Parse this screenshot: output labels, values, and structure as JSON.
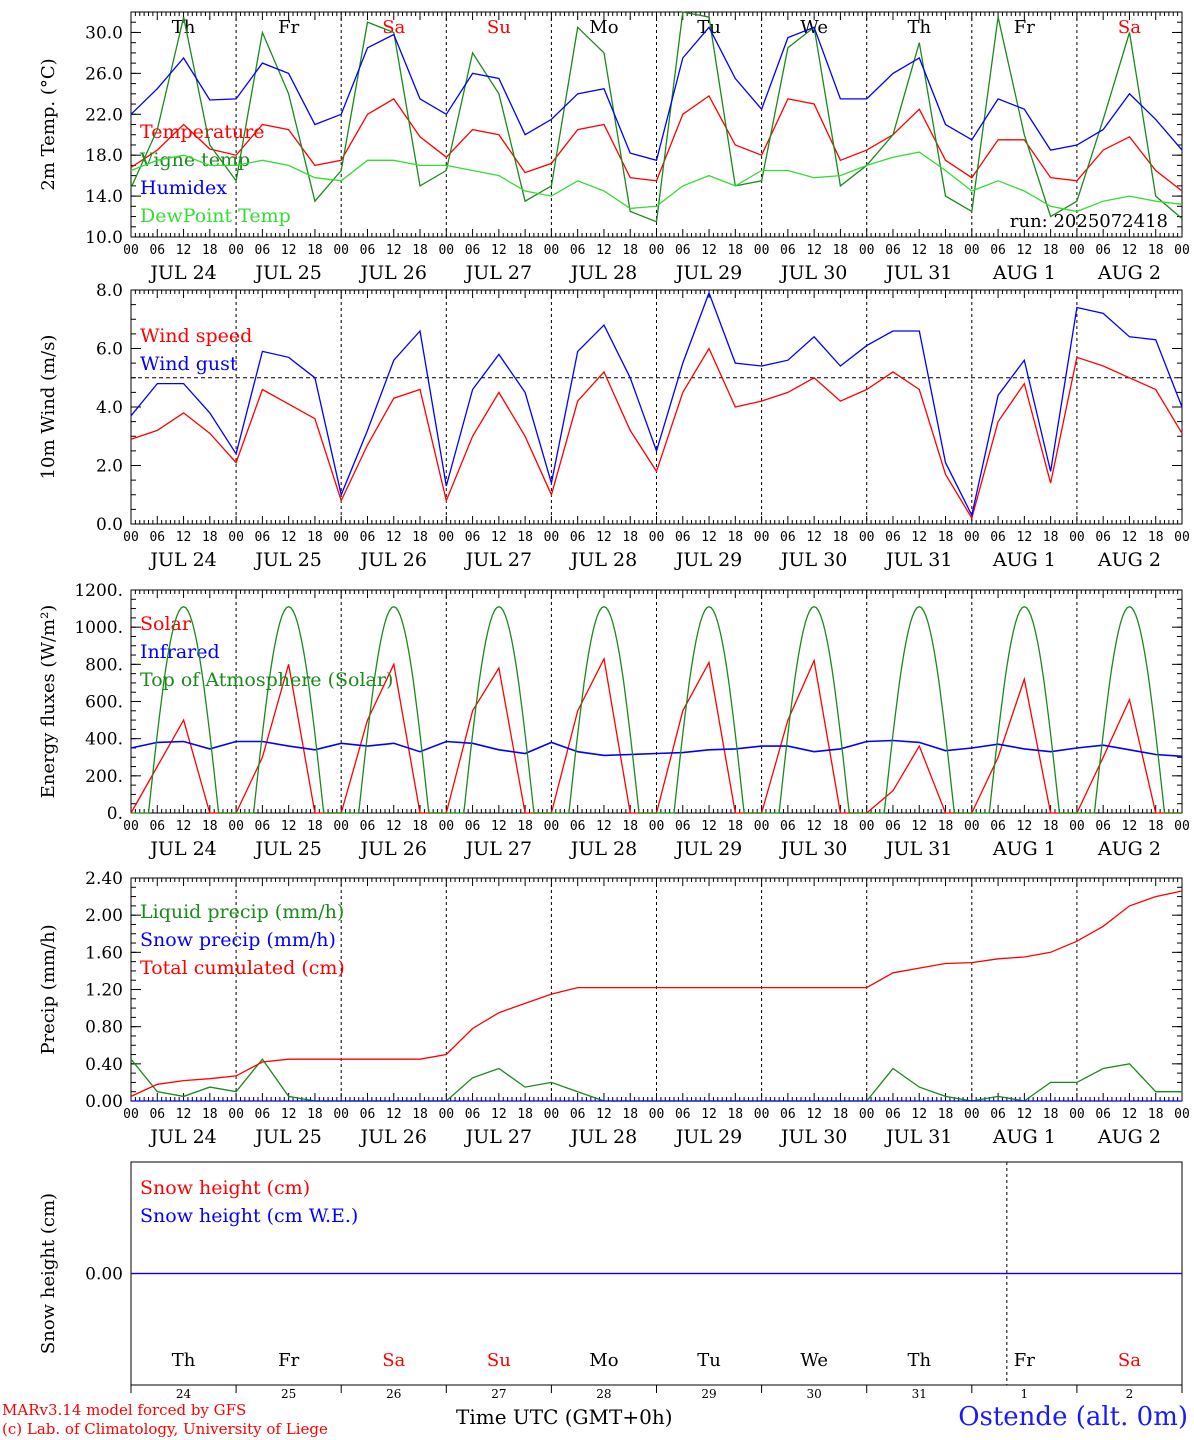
{
  "colors": {
    "red": "#ff0000",
    "green": "#1a8a1a",
    "blue": "#0000ff",
    "lightgreen": "#33dd33",
    "axis": "#000000"
  },
  "days": [
    {
      "abbr": "Th",
      "weekend": false,
      "date": "JUL 24",
      "daynum": "24"
    },
    {
      "abbr": "Fr",
      "weekend": false,
      "date": "JUL 25",
      "daynum": "25"
    },
    {
      "abbr": "Sa",
      "weekend": true,
      "date": "JUL 26",
      "daynum": "26"
    },
    {
      "abbr": "Su",
      "weekend": true,
      "date": "JUL 27",
      "daynum": "27"
    },
    {
      "abbr": "Mo",
      "weekend": false,
      "date": "JUL 28",
      "daynum": "28"
    },
    {
      "abbr": "Tu",
      "weekend": false,
      "date": "JUL 29",
      "daynum": "29"
    },
    {
      "abbr": "We",
      "weekend": false,
      "date": "JUL 30",
      "daynum": "30"
    },
    {
      "abbr": "Th",
      "weekend": false,
      "date": "JUL 31",
      "daynum": "31"
    },
    {
      "abbr": "Fr",
      "weekend": false,
      "date": "AUG  1",
      "daynum": "1"
    },
    {
      "abbr": "Sa",
      "weekend": true,
      "date": "AUG  2",
      "daynum": "2"
    }
  ],
  "hour_ticks": [
    "00",
    "06",
    "12",
    "18"
  ],
  "footer": {
    "model_line": "MARv3.14 model forced by GFS",
    "lab_line": "(c) Lab. of Climatology, University of Liege",
    "time_label": "Time UTC (GMT+0h)",
    "station": "Ostende (alt. 0m)"
  },
  "chart_data": [
    {
      "id": "temperature",
      "type": "line",
      "ylabel": "2m Temp. (°C)",
      "ylim": [
        10,
        32
      ],
      "yticks": [
        "10.0",
        "14.0",
        "18.0",
        "22.0",
        "26.0",
        "30.0"
      ],
      "run_label": "run: 2025072418",
      "x_hours": [
        0,
        6,
        12,
        18,
        24,
        30,
        36,
        42,
        48,
        54,
        60,
        66,
        72,
        78,
        84,
        90,
        96,
        102,
        108,
        114,
        120,
        126,
        132,
        138,
        144,
        150,
        156,
        162,
        168,
        174,
        180,
        186,
        192,
        198,
        204,
        210,
        216,
        222,
        228,
        234,
        240
      ],
      "series": [
        {
          "name": "Temperature",
          "color": "red",
          "values": [
            16.8,
            18.5,
            21.0,
            18.6,
            18.0,
            21.0,
            20.5,
            17.0,
            17.5,
            22.0,
            23.5,
            19.8,
            17.8,
            20.5,
            20.0,
            16.3,
            17.2,
            20.5,
            21.0,
            15.8,
            15.5,
            22.0,
            23.8,
            19.0,
            18.0,
            23.5,
            23.0,
            17.5,
            18.5,
            20.0,
            22.5,
            17.5,
            15.8,
            19.5,
            19.5,
            15.8,
            15.5,
            18.5,
            19.8,
            16.5,
            14.5
          ]
        },
        {
          "name": "Vigne temp",
          "color": "green",
          "values": [
            14.8,
            20.5,
            31.5,
            19.0,
            15.5,
            30.0,
            24.0,
            13.5,
            16.5,
            31.0,
            30.0,
            15.0,
            16.5,
            28.0,
            24.0,
            13.5,
            15.0,
            30.5,
            28.0,
            12.5,
            11.5,
            32.0,
            31.5,
            15.0,
            15.5,
            28.5,
            30.5,
            15.0,
            17.0,
            20.0,
            29.0,
            14.0,
            12.5,
            31.5,
            20.0,
            12.0,
            13.5,
            21.5,
            30.0,
            14.0,
            11.8
          ]
        },
        {
          "name": "Humidex",
          "color": "blue",
          "values": [
            22.0,
            24.5,
            27.5,
            23.4,
            23.5,
            27.0,
            26.0,
            21.0,
            22.0,
            28.5,
            29.8,
            23.5,
            22.0,
            26.0,
            25.5,
            20.0,
            21.5,
            24.0,
            24.5,
            18.2,
            17.5,
            27.5,
            30.5,
            25.5,
            22.5,
            29.5,
            30.5,
            23.5,
            23.5,
            26.0,
            27.5,
            21.0,
            19.5,
            23.5,
            22.5,
            18.5,
            19.0,
            20.5,
            24.0,
            21.5,
            18.5
          ]
        },
        {
          "name": "DewPoint Temp",
          "color": "lightgreen",
          "values": [
            16.5,
            17.5,
            18.0,
            17.0,
            17.0,
            17.5,
            17.0,
            15.8,
            15.5,
            17.5,
            17.5,
            17.0,
            17.0,
            16.5,
            16.0,
            14.5,
            14.0,
            15.5,
            14.5,
            12.8,
            13.0,
            15.0,
            16.0,
            15.0,
            16.5,
            16.5,
            15.8,
            16.0,
            17.0,
            17.8,
            18.3,
            16.5,
            14.5,
            15.5,
            14.5,
            13.0,
            12.5,
            13.5,
            14.0,
            13.5,
            13.2
          ]
        }
      ]
    },
    {
      "id": "wind",
      "type": "line",
      "ylabel": "10m Wind (m/s)",
      "ylim": [
        0,
        8
      ],
      "yticks": [
        "0.0",
        "2.0",
        "4.0",
        "6.0",
        "8.0"
      ],
      "reference_line": 5,
      "x_hours": [
        0,
        6,
        12,
        18,
        24,
        30,
        36,
        42,
        48,
        54,
        60,
        66,
        72,
        78,
        84,
        90,
        96,
        102,
        108,
        114,
        120,
        126,
        132,
        138,
        144,
        150,
        156,
        162,
        168,
        174,
        180,
        186,
        192,
        198,
        204,
        210,
        216,
        222,
        228,
        234,
        240
      ],
      "series": [
        {
          "name": "Wind speed",
          "color": "red",
          "values": [
            2.9,
            3.2,
            3.8,
            3.1,
            2.1,
            4.6,
            4.1,
            3.6,
            0.8,
            2.7,
            4.3,
            4.6,
            0.8,
            3.0,
            4.5,
            3.0,
            1.0,
            4.2,
            5.2,
            3.2,
            1.8,
            4.5,
            6.0,
            4.0,
            4.2,
            4.5,
            5.0,
            4.2,
            4.6,
            5.2,
            4.6,
            1.7,
            0.2,
            3.5,
            4.8,
            1.4,
            5.7,
            5.4,
            5.0,
            4.6,
            3.1
          ]
        },
        {
          "name": "Wind gust",
          "color": "blue",
          "values": [
            3.7,
            4.8,
            4.8,
            3.8,
            2.4,
            5.9,
            5.7,
            5.0,
            1.0,
            3.2,
            5.6,
            6.6,
            1.3,
            4.6,
            5.8,
            4.5,
            1.4,
            5.9,
            6.8,
            5.0,
            2.5,
            5.5,
            7.9,
            5.5,
            5.4,
            5.6,
            6.4,
            5.4,
            6.1,
            6.6,
            6.6,
            2.1,
            0.3,
            4.4,
            5.6,
            1.8,
            7.4,
            7.2,
            6.4,
            6.3,
            4.0
          ]
        }
      ]
    },
    {
      "id": "energy",
      "type": "line",
      "ylabel": "Energy fluxes (W/m²)",
      "ylim": [
        0,
        1200
      ],
      "yticks": [
        "0.",
        "200.",
        "400.",
        "600.",
        "800.",
        "1000.",
        "1200."
      ],
      "x_hours": [
        0,
        6,
        12,
        18,
        24,
        30,
        36,
        42,
        48,
        54,
        60,
        66,
        72,
        78,
        84,
        90,
        96,
        102,
        108,
        114,
        120,
        126,
        132,
        138,
        144,
        150,
        156,
        162,
        168,
        174,
        180,
        186,
        192,
        198,
        204,
        210,
        216,
        222,
        228,
        234,
        240
      ],
      "series": [
        {
          "name": "Solar",
          "color": "red",
          "values": [
            0,
            250,
            500,
            0,
            0,
            300,
            800,
            0,
            0,
            500,
            800,
            0,
            0,
            550,
            780,
            0,
            0,
            550,
            830,
            0,
            0,
            550,
            810,
            0,
            0,
            500,
            820,
            0,
            0,
            120,
            360,
            0,
            0,
            300,
            720,
            0,
            0,
            300,
            610,
            0,
            0
          ]
        },
        {
          "name": "Infrared",
          "color": "blue",
          "values": [
            350,
            380,
            385,
            345,
            385,
            385,
            360,
            340,
            375,
            360,
            375,
            330,
            385,
            375,
            340,
            320,
            380,
            330,
            310,
            315,
            320,
            325,
            340,
            345,
            360,
            360,
            330,
            345,
            385,
            390,
            380,
            335,
            350,
            370,
            345,
            330,
            350,
            365,
            340,
            315,
            305
          ]
        },
        {
          "name": "Top of Atmosphere (Solar)",
          "color": "green",
          "values": []
        }
      ]
    },
    {
      "id": "precip",
      "type": "line",
      "ylabel": "Precip (mm/h)",
      "ylim": [
        0,
        2.4
      ],
      "yticks": [
        "0.00",
        "0.40",
        "0.80",
        "1.20",
        "1.60",
        "2.00",
        "2.40"
      ],
      "x_hours": [
        0,
        6,
        12,
        18,
        24,
        30,
        36,
        42,
        48,
        54,
        60,
        66,
        72,
        78,
        84,
        90,
        96,
        102,
        108,
        114,
        120,
        126,
        132,
        138,
        144,
        150,
        156,
        162,
        168,
        174,
        180,
        186,
        192,
        198,
        204,
        210,
        216,
        222,
        228,
        234,
        240
      ],
      "series": [
        {
          "name": "Liquid precip (mm/h)",
          "color": "green",
          "values": [
            0.45,
            0.1,
            0.05,
            0.15,
            0.1,
            0.45,
            0.05,
            0.0,
            0.0,
            0.0,
            0.0,
            0.0,
            0.0,
            0.25,
            0.35,
            0.15,
            0.2,
            0.1,
            0.0,
            0.0,
            0.0,
            0.0,
            0.0,
            0.0,
            0.0,
            0.0,
            0.0,
            0.0,
            0.0,
            0.35,
            0.15,
            0.05,
            0.0,
            0.05,
            0.0,
            0.2,
            0.2,
            0.35,
            0.4,
            0.1,
            0.1
          ]
        },
        {
          "name": "Snow precip (mm/h)",
          "color": "blue",
          "values": [
            0,
            0,
            0,
            0,
            0,
            0,
            0,
            0,
            0,
            0,
            0,
            0,
            0,
            0,
            0,
            0,
            0,
            0,
            0,
            0,
            0,
            0,
            0,
            0,
            0,
            0,
            0,
            0,
            0,
            0,
            0,
            0,
            0,
            0,
            0,
            0,
            0,
            0,
            0,
            0,
            0
          ]
        },
        {
          "name": "Total cumulated (cm)",
          "color": "red",
          "values": [
            0.05,
            0.18,
            0.22,
            0.24,
            0.27,
            0.42,
            0.45,
            0.45,
            0.45,
            0.45,
            0.45,
            0.45,
            0.5,
            0.78,
            0.95,
            1.05,
            1.15,
            1.22,
            1.22,
            1.22,
            1.22,
            1.22,
            1.22,
            1.22,
            1.22,
            1.22,
            1.22,
            1.22,
            1.22,
            1.38,
            1.43,
            1.48,
            1.49,
            1.53,
            1.55,
            1.6,
            1.72,
            1.88,
            2.1,
            2.2,
            2.26
          ]
        }
      ]
    },
    {
      "id": "snow",
      "type": "line",
      "ylabel": "Snow height (cm)",
      "ylim": [
        -1,
        1
      ],
      "yticks": [
        "0.00"
      ],
      "series": [
        {
          "name": "Snow height (cm)",
          "color": "red",
          "values": [
            0,
            0
          ]
        },
        {
          "name": "Snow height (cm W.E.)",
          "color": "blue",
          "values": [
            0,
            0
          ]
        }
      ]
    }
  ]
}
